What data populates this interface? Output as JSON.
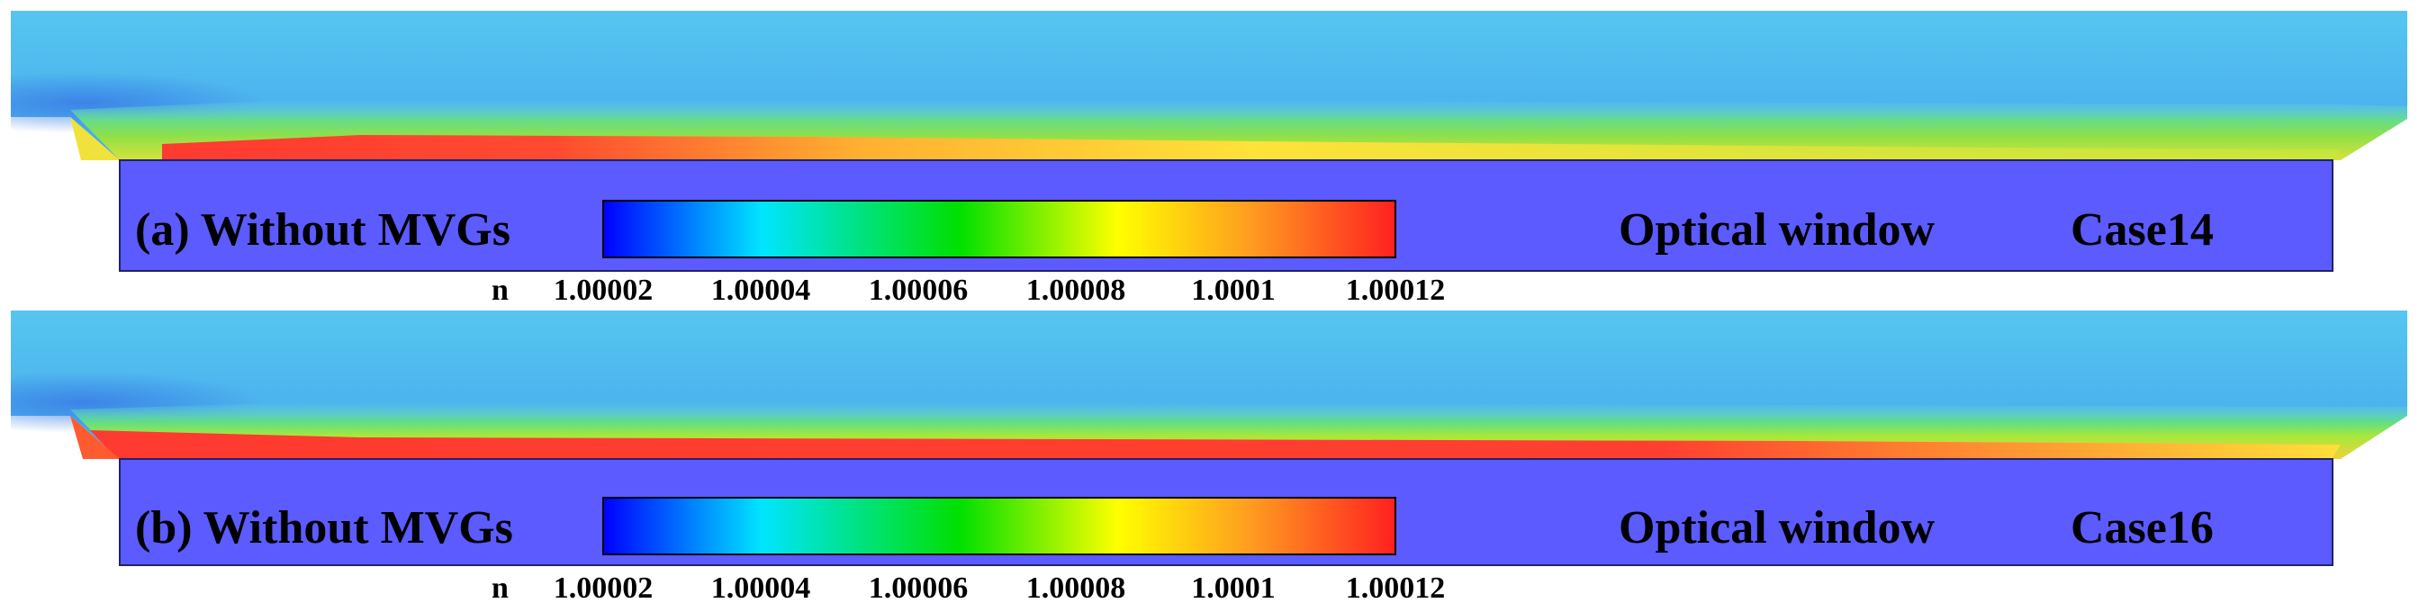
{
  "panels": [
    {
      "id": "a",
      "label": "(a) Without  MVGs",
      "window_label": "Optical window",
      "case_label": "Case14",
      "colorbar": {
        "symbol": "n",
        "ticks": [
          "1.00002",
          "1.00004",
          "1.00006",
          "1.00008",
          "1.0001",
          "1.00012"
        ]
      }
    },
    {
      "id": "b",
      "label": "(b) Without  MVGs",
      "window_label": "Optical window",
      "case_label": "Case16",
      "colorbar": {
        "symbol": "n",
        "ticks": [
          "1.00002",
          "1.00004",
          "1.00006",
          "1.00008",
          "1.0001",
          "1.00012"
        ]
      }
    }
  ],
  "colors": {
    "window_fill": "#5b5bff",
    "free_stream": "#4fb6ee",
    "colormap": [
      "#0000ff",
      "#00e5ff",
      "#00e000",
      "#ffff00",
      "#ff9a20",
      "#ff2020"
    ]
  }
}
